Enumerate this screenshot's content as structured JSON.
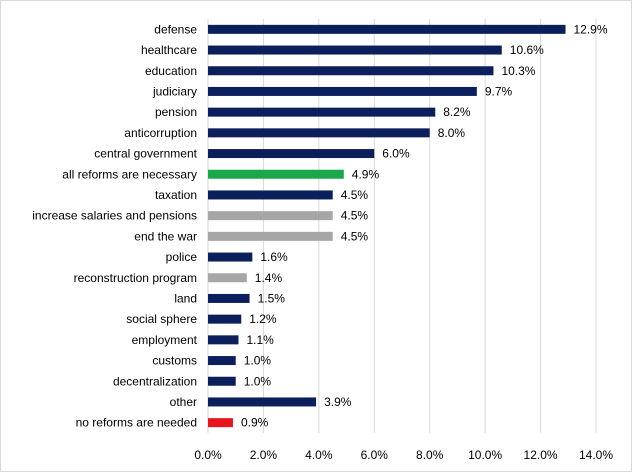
{
  "colors": {
    "navy": "#0a1f5c",
    "green": "#1aa84c",
    "gray": "#a6a6a6",
    "red": "#e8141c",
    "grid": "#d9d9d9"
  },
  "chart_data": {
    "type": "bar",
    "orientation": "horizontal",
    "title": "",
    "xlabel": "",
    "ylabel": "",
    "xlim": [
      0,
      14
    ],
    "grid": true,
    "legend": "none",
    "ticks": [
      "0.0%",
      "2.0%",
      "4.0%",
      "6.0%",
      "8.0%",
      "10.0%",
      "12.0%",
      "14.0%"
    ],
    "categories": [
      "defense",
      "healthcare",
      "education",
      "judiciary",
      "pension",
      "anticorruption",
      "central government",
      "all reforms are necessary",
      "taxation",
      "increase salaries and pensions",
      "end the war",
      "police",
      "reconstruction program",
      "land",
      "social sphere",
      "employment",
      "customs",
      "decentralization",
      "other",
      "no reforms are needed"
    ],
    "values": [
      12.9,
      10.6,
      10.3,
      9.7,
      8.2,
      8.0,
      6.0,
      4.9,
      4.5,
      4.5,
      4.5,
      1.6,
      1.4,
      1.5,
      1.2,
      1.1,
      1.0,
      1.0,
      3.9,
      0.9
    ],
    "labels": [
      "12.9%",
      "10.6%",
      "10.3%",
      "9.7%",
      "8.2%",
      "8.0%",
      "6.0%",
      "4.9%",
      "4.5%",
      "4.5%",
      "4.5%",
      "1.6%",
      "1.4%",
      "1.5%",
      "1.2%",
      "1.1%",
      "1.0%",
      "1.0%",
      "3.9%",
      "0.9%"
    ],
    "bar_colors": [
      "navy",
      "navy",
      "navy",
      "navy",
      "navy",
      "navy",
      "navy",
      "green",
      "navy",
      "gray",
      "gray",
      "navy",
      "gray",
      "navy",
      "navy",
      "navy",
      "navy",
      "navy",
      "navy",
      "red"
    ]
  }
}
